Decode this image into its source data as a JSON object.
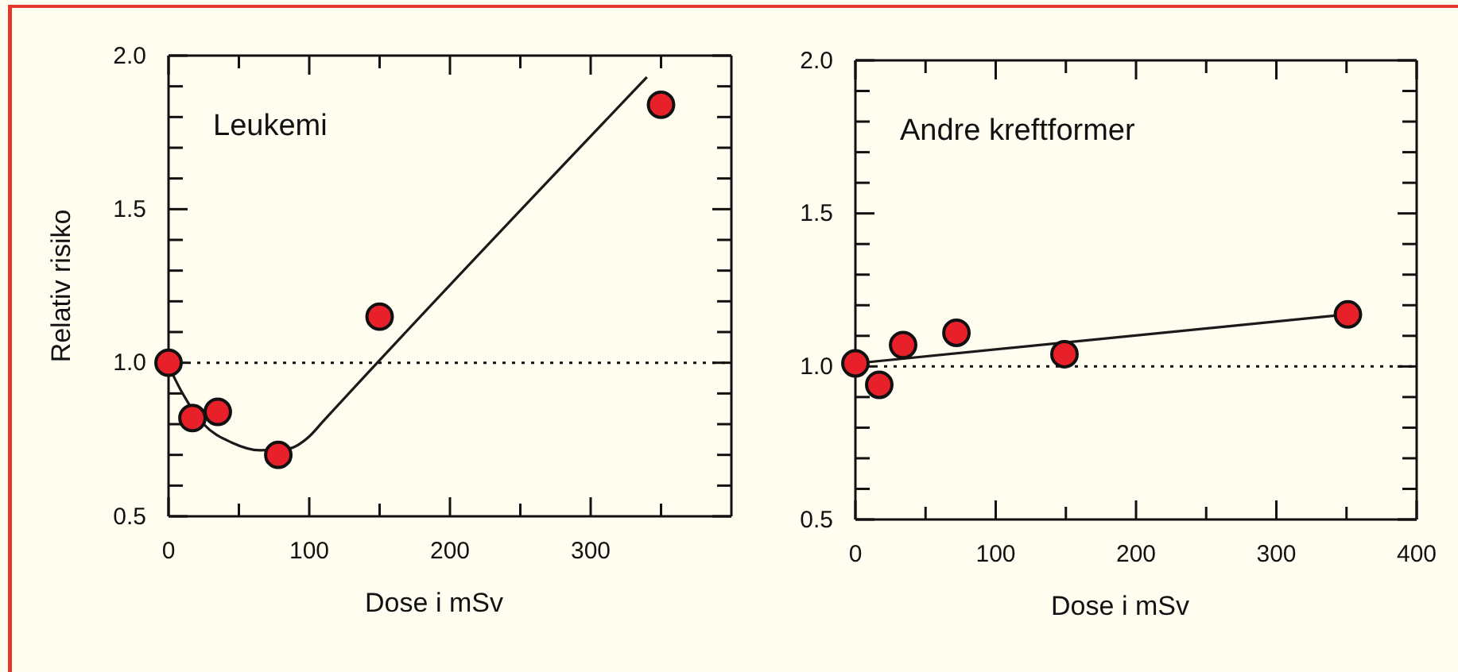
{
  "chart_data": [
    {
      "type": "scatter",
      "annotations": [
        "Leukemi"
      ],
      "xlabel": "Dose i mSv",
      "ylabel": "Relativ risiko",
      "xlim": [
        0,
        400
      ],
      "ylim": [
        0.5,
        2.0
      ],
      "xticks": [
        0,
        {
          "value": 50,
          "label": null
        },
        100,
        {
          "value": 150,
          "label": null
        },
        200,
        {
          "value": 250,
          "label": null
        },
        300,
        {
          "value": 350,
          "label": null
        }
      ],
      "yticks": [
        {
          "value": 0.5,
          "label": "0.5"
        },
        {
          "value": 0.6,
          "label": null
        },
        {
          "value": 0.7,
          "label": null
        },
        {
          "value": 0.8,
          "label": null
        },
        {
          "value": 0.9,
          "label": null
        },
        {
          "value": 1,
          "label": "1.0"
        },
        {
          "value": 1.1,
          "label": null
        },
        {
          "value": 1.2,
          "label": null
        },
        {
          "value": 1.3,
          "label": null
        },
        {
          "value": 1.4,
          "label": null
        },
        {
          "value": 1.5,
          "label": "1.5"
        },
        {
          "value": 1.6,
          "label": null
        },
        {
          "value": 1.7,
          "label": null
        },
        {
          "value": 1.8,
          "label": null
        },
        {
          "value": 1.9,
          "label": null
        },
        {
          "value": 2,
          "label": "2.0"
        }
      ],
      "ref_lines": [
        {
          "axis": "y",
          "value": 1.0,
          "line_style": "dotted"
        }
      ],
      "grid": false,
      "series": [
        {
          "type": "line",
          "color": "#1a1a1a",
          "x": [
            0,
            10,
            25,
            45,
            65,
            85,
            100,
            110,
            340
          ],
          "values": [
            0.99,
            0.9,
            0.8,
            0.74,
            0.715,
            0.72,
            0.76,
            0.81,
            1.93
          ]
        },
        {
          "type": "scatter",
          "color": "#e8202a",
          "marker": "circle",
          "x": [
            0,
            17,
            35,
            78,
            150,
            350
          ],
          "values": [
            1.0,
            0.82,
            0.84,
            0.7,
            1.15,
            1.84
          ]
        }
      ]
    },
    {
      "type": "scatter",
      "annotations": [
        "Andre kreftformer"
      ],
      "xlabel": "Dose i mSv",
      "xlim": [
        0,
        400
      ],
      "ylim": [
        0.5,
        2.0
      ],
      "xticks": [
        0,
        {
          "value": 50,
          "label": null
        },
        100,
        {
          "value": 150,
          "label": null
        },
        200,
        {
          "value": 250,
          "label": null
        },
        300,
        {
          "value": 350,
          "label": null
        },
        400
      ],
      "yticks": [
        {
          "value": 0.5,
          "label": "0.5"
        },
        {
          "value": 0.6,
          "label": null
        },
        {
          "value": 0.7,
          "label": null
        },
        {
          "value": 0.8,
          "label": null
        },
        {
          "value": 0.9,
          "label": null
        },
        {
          "value": 1,
          "label": "1.0"
        },
        {
          "value": 1.1,
          "label": null
        },
        {
          "value": 1.2,
          "label": null
        },
        {
          "value": 1.3,
          "label": null
        },
        {
          "value": 1.4,
          "label": null
        },
        {
          "value": 1.5,
          "label": "1.5"
        },
        {
          "value": 1.6,
          "label": null
        },
        {
          "value": 1.7,
          "label": null
        },
        {
          "value": 1.8,
          "label": null
        },
        {
          "value": 1.9,
          "label": null
        },
        {
          "value": 2,
          "label": "2.0"
        }
      ],
      "ref_lines": [
        {
          "axis": "y",
          "value": 1.0,
          "line_style": "dotted"
        }
      ],
      "grid": false,
      "series": [
        {
          "type": "line",
          "color": "#1a1a1a",
          "x": [
            0,
            350
          ],
          "values": [
            1.01,
            1.17
          ]
        },
        {
          "type": "scatter",
          "color": "#e8202a",
          "marker": "circle",
          "x": [
            0,
            17,
            34,
            72,
            149,
            351
          ],
          "values": [
            1.01,
            0.94,
            1.07,
            1.11,
            1.04,
            1.17
          ]
        }
      ]
    }
  ]
}
